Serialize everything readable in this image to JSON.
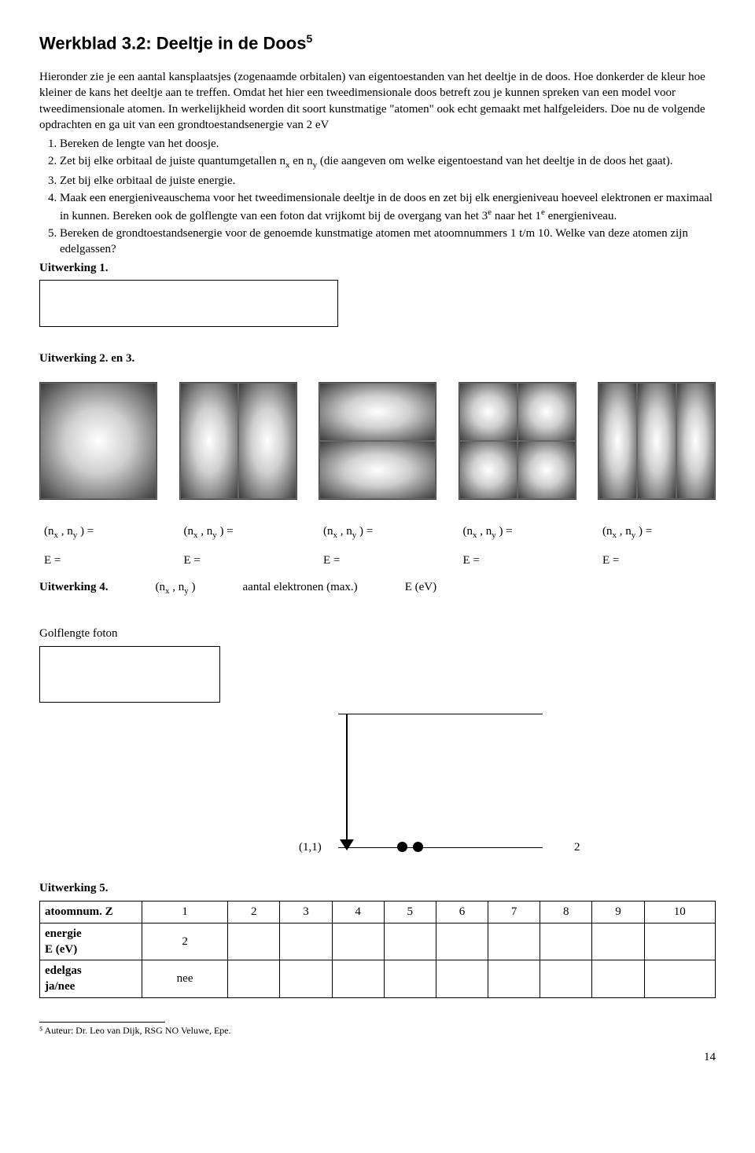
{
  "title_main": "Werkblad 3.2: Deeltje in de Doos",
  "title_sup": "5",
  "intro": "Hieronder zie je een aantal kansplaatsjes (zogenaamde orbitalen) van eigentoestanden van het deeltje in de doos. Hoe donkerder de kleur hoe kleiner de kans het deeltje aan te treffen. Omdat het hier een tweedimensionale doos betreft zou je kunnen spreken van een model voor tweedimensionale atomen. In werkelijkheid worden dit soort kunstmatige \"atomen\" ook echt gemaakt met halfgeleiders. Doe nu de volgende opdrachten en ga uit van een grondtoestandsenergie van 2 eV",
  "tasks": {
    "1": "Bereken de lengte van het doosje.",
    "2": "Zet bij elke orbitaal de juiste quantumgetallen nₓ en n_y (die aangeven om welke eigentoestand van het deeltje in de doos het gaat).",
    "3": "Zet bij elke orbitaal de juiste energie.",
    "4": "Maak een energieniveauschema voor het tweedimensionale deeltje in de doos en zet bij elk energieniveau hoeveel elektronen er maximaal in kunnen. Bereken ook de golflengte van een foton dat vrijkomt bij de overgang van het 3ᵉ naar het 1ᵉ energieniveau.",
    "5": "Bereken de grondtoestandsenergie voor de genoemde kunstmatige atomen met atoomnummers 1 t/m 10. Welke van deze atomen zijn edelgassen?"
  },
  "uitwerking1": "Uitwerking 1.",
  "uitwerking23": "Uitwerking 2. en 3.",
  "orbitals": [
    {
      "cols": 1,
      "rows": 1
    },
    {
      "cols": 2,
      "rows": 1
    },
    {
      "cols": 1,
      "rows": 2
    },
    {
      "cols": 2,
      "rows": 2
    },
    {
      "cols": 3,
      "rows": 1
    }
  ],
  "n_label": "(nₓ , n_y ) =",
  "e_label": "E =",
  "uitwerking4": "Uitwerking 4.",
  "uitw4_cols": [
    "(nₓ , n_y )",
    "aantal elektronen (max.)",
    "E (eV)"
  ],
  "golf_title": "Golflengte foton",
  "level": {
    "left_label": "(1,1)",
    "right_label": "2"
  },
  "uitwerking5": "Uitwerking 5.",
  "table": {
    "header": "atoomnum. Z",
    "nums": [
      "1",
      "2",
      "3",
      "4",
      "5",
      "6",
      "7",
      "8",
      "9",
      "10"
    ],
    "row_energy_label": "energie\nE (eV)",
    "row_energy_first": "2",
    "row_edelgas_label": "edelgas\nja/nee",
    "row_edelgas_first": "nee"
  },
  "footnote": "⁵ Auteur: Dr. Leo van Dijk, RSG NO Veluwe, Epe.",
  "pagenum": "14"
}
